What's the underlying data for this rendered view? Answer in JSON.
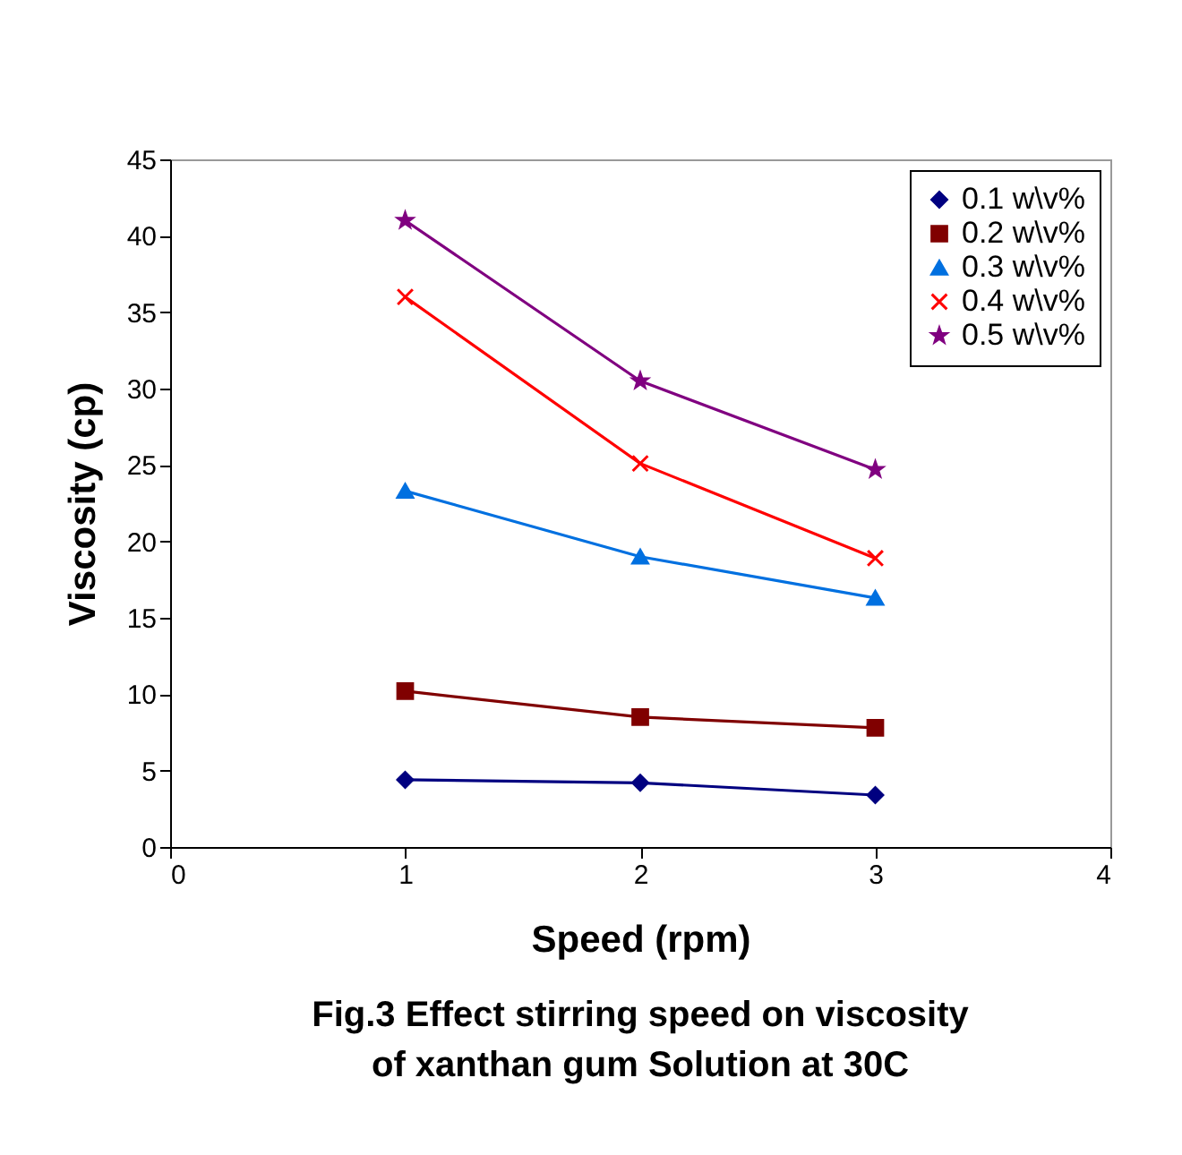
{
  "chart_data": {
    "type": "line",
    "title": "Fig.3 Effect stirring speed on viscosity of xanthan gum Solution at 30C",
    "xlabel": "Speed (rpm)",
    "ylabel": "Viscosity (cp)",
    "x": [
      1,
      2,
      3
    ],
    "xlim": [
      0,
      4
    ],
    "xticks": [
      0,
      1,
      2,
      3,
      4
    ],
    "ylim": [
      0,
      45
    ],
    "yticks": [
      0,
      5,
      10,
      15,
      20,
      25,
      30,
      35,
      40,
      45
    ],
    "grid": false,
    "legend": "top right",
    "series": [
      {
        "name": "0.1 w\\v%",
        "color": "#000080",
        "marker": "diamond",
        "values": [
          4.4,
          4.2,
          3.4
        ]
      },
      {
        "name": "0.2 w\\v%",
        "color": "#800000",
        "marker": "square",
        "values": [
          10.2,
          8.5,
          7.8
        ]
      },
      {
        "name": "0.3 w\\v%",
        "color": "#0070e0",
        "marker": "triangle",
        "values": [
          23.3,
          19.0,
          16.3
        ]
      },
      {
        "name": "0.4 w\\v%",
        "color": "#ff0000",
        "marker": "cross",
        "values": [
          36.0,
          25.1,
          18.9
        ]
      },
      {
        "name": "0.5 w\\v%",
        "color": "#800080",
        "marker": "star",
        "values": [
          41.0,
          30.5,
          24.7
        ]
      }
    ]
  }
}
